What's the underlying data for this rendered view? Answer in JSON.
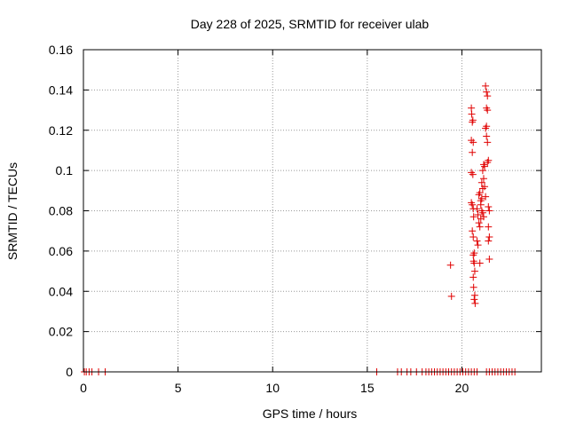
{
  "chart_data": {
    "type": "scatter",
    "title": "Day 228 of 2025, SRMTID for receiver ulab",
    "xlabel": "GPS time / hours",
    "ylabel": "SRMTID / TECUs",
    "xlim": [
      0,
      24.2
    ],
    "ylim": [
      0,
      0.16
    ],
    "xticks": [
      0,
      5,
      10,
      15,
      20
    ],
    "xtick_labels": [
      "0",
      "5",
      "10",
      "15",
      "20"
    ],
    "yticks": [
      0,
      0.02,
      0.04,
      0.06,
      0.08,
      0.1,
      0.12,
      0.14,
      0.16
    ],
    "ytick_labels": [
      "0",
      "0.02",
      "0.04",
      "0.06",
      "0.08",
      "0.1",
      "0.12",
      "0.14",
      "0.16"
    ],
    "grid": true,
    "marker": "+",
    "series": [
      {
        "name": "SRMTID",
        "color": "#e00000",
        "points": [
          [
            0.05,
            0
          ],
          [
            0.15,
            0
          ],
          [
            0.3,
            0
          ],
          [
            0.45,
            0
          ],
          [
            0.8,
            0
          ],
          [
            1.15,
            0
          ],
          [
            15.5,
            0
          ],
          [
            16.6,
            0
          ],
          [
            16.8,
            0
          ],
          [
            17.1,
            0
          ],
          [
            17.3,
            0
          ],
          [
            17.6,
            0
          ],
          [
            17.9,
            0
          ],
          [
            18.1,
            0
          ],
          [
            18.25,
            0
          ],
          [
            18.4,
            0
          ],
          [
            18.55,
            0
          ],
          [
            18.7,
            0
          ],
          [
            18.85,
            0
          ],
          [
            19.0,
            0
          ],
          [
            19.15,
            0
          ],
          [
            19.3,
            0
          ],
          [
            19.45,
            0
          ],
          [
            19.6,
            0
          ],
          [
            19.75,
            0
          ],
          [
            19.9,
            0
          ],
          [
            20.05,
            0
          ],
          [
            20.2,
            0
          ],
          [
            20.35,
            0
          ],
          [
            20.5,
            0
          ],
          [
            20.65,
            0
          ],
          [
            20.8,
            0
          ],
          [
            21.3,
            0
          ],
          [
            21.45,
            0
          ],
          [
            21.6,
            0
          ],
          [
            21.75,
            0
          ],
          [
            21.9,
            0
          ],
          [
            22.05,
            0
          ],
          [
            22.2,
            0
          ],
          [
            22.35,
            0
          ],
          [
            22.5,
            0
          ],
          [
            22.65,
            0
          ],
          [
            22.8,
            0
          ],
          [
            19.4,
            0.053
          ],
          [
            19.45,
            0.0375
          ],
          [
            20.5,
            0.131
          ],
          [
            20.52,
            0.128
          ],
          [
            20.55,
            0.124
          ],
          [
            20.58,
            0.125
          ],
          [
            20.5,
            0.115
          ],
          [
            20.6,
            0.114
          ],
          [
            20.55,
            0.109
          ],
          [
            20.5,
            0.099
          ],
          [
            20.58,
            0.098
          ],
          [
            20.5,
            0.084
          ],
          [
            20.55,
            0.083
          ],
          [
            20.6,
            0.081
          ],
          [
            20.62,
            0.077
          ],
          [
            20.55,
            0.07
          ],
          [
            20.6,
            0.067
          ],
          [
            20.65,
            0.059
          ],
          [
            20.6,
            0.058
          ],
          [
            20.62,
            0.055
          ],
          [
            20.65,
            0.054
          ],
          [
            20.68,
            0.05
          ],
          [
            20.6,
            0.047
          ],
          [
            20.62,
            0.042
          ],
          [
            20.68,
            0.038
          ],
          [
            20.65,
            0.036
          ],
          [
            20.7,
            0.034
          ],
          [
            20.8,
            0.081
          ],
          [
            20.85,
            0.078
          ],
          [
            20.9,
            0.074
          ],
          [
            20.95,
            0.072
          ],
          [
            20.8,
            0.065
          ],
          [
            20.85,
            0.063
          ],
          [
            20.9,
            0.088
          ],
          [
            20.95,
            0.089
          ],
          [
            21.0,
            0.085
          ],
          [
            21.05,
            0.086
          ],
          [
            21.0,
            0.083
          ],
          [
            21.05,
            0.08
          ],
          [
            21.1,
            0.079
          ],
          [
            21.15,
            0.077
          ],
          [
            21.0,
            0.076
          ],
          [
            20.95,
            0.054
          ],
          [
            21.05,
            0.094
          ],
          [
            21.1,
            0.091
          ],
          [
            21.15,
            0.096
          ],
          [
            21.1,
            0.1
          ],
          [
            21.2,
            0.102
          ],
          [
            21.15,
            0.103
          ],
          [
            21.2,
            0.092
          ],
          [
            21.25,
            0.087
          ],
          [
            21.25,
            0.142
          ],
          [
            21.3,
            0.139
          ],
          [
            21.35,
            0.137
          ],
          [
            21.3,
            0.131
          ],
          [
            21.35,
            0.13
          ],
          [
            21.3,
            0.122
          ],
          [
            21.25,
            0.121
          ],
          [
            21.3,
            0.117
          ],
          [
            21.35,
            0.114
          ],
          [
            21.4,
            0.105
          ],
          [
            21.35,
            0.104
          ],
          [
            21.4,
            0.082
          ],
          [
            21.45,
            0.08
          ],
          [
            21.4,
            0.072
          ],
          [
            21.45,
            0.067
          ],
          [
            21.4,
            0.065
          ],
          [
            21.45,
            0.056
          ]
        ]
      }
    ]
  }
}
